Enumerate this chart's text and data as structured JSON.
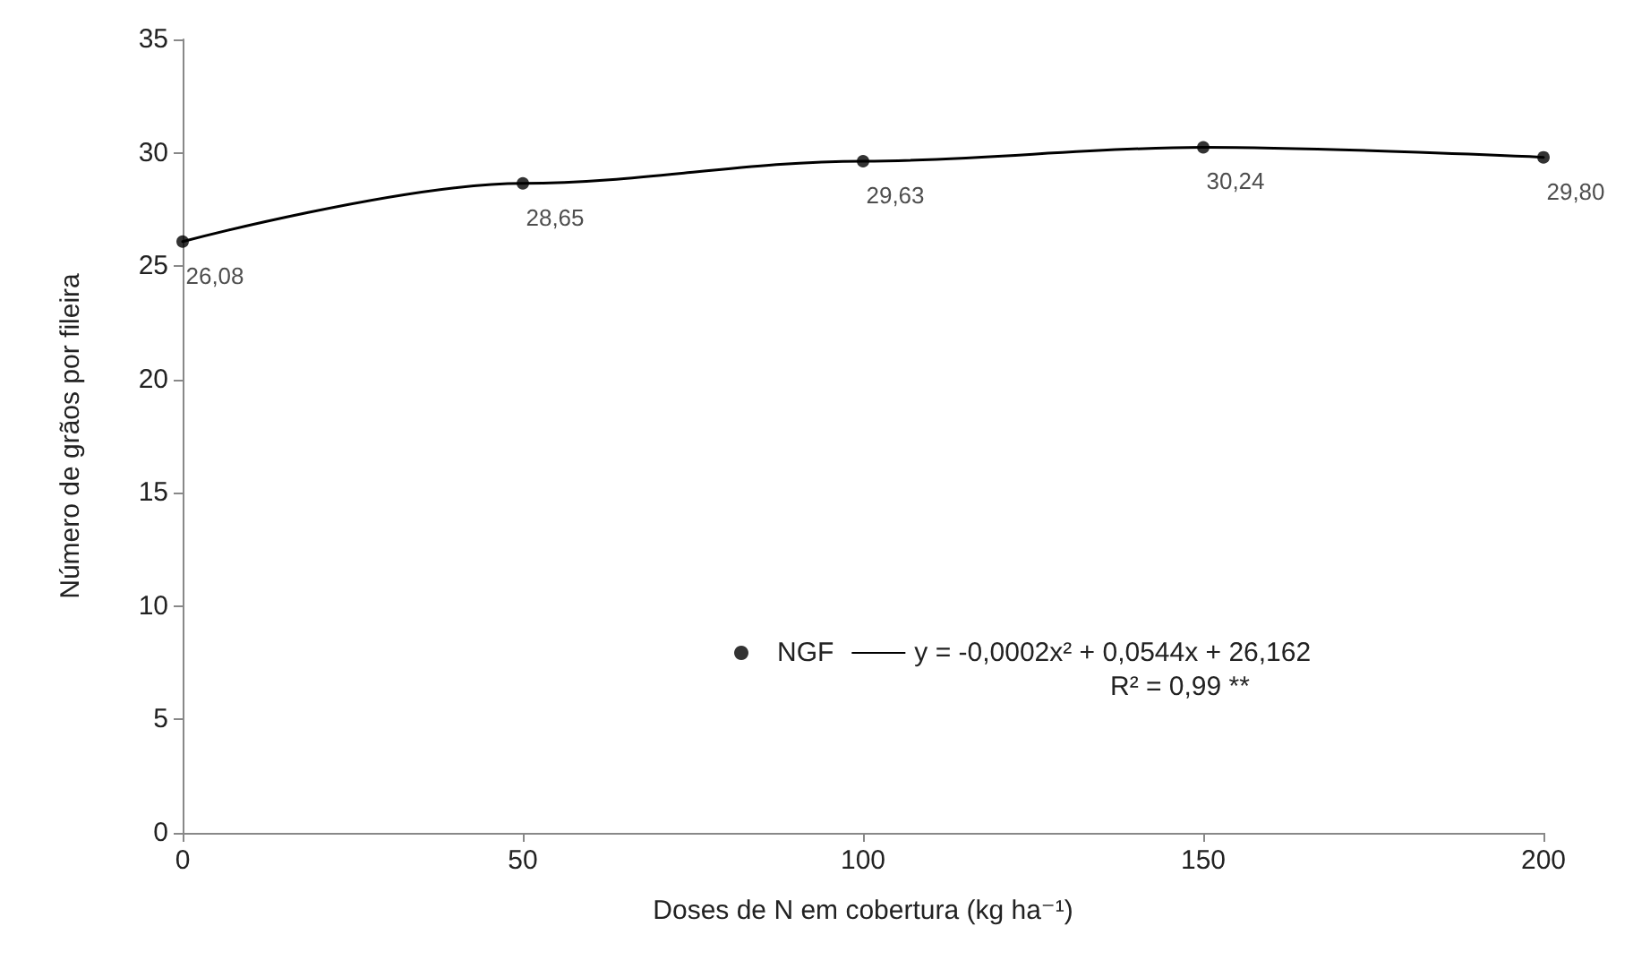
{
  "chart_data": {
    "type": "scatter",
    "xlabel": "Doses de N em cobertura (kg ha⁻¹)",
    "ylabel": "Número de grãos por fileira",
    "x": [
      0,
      50,
      100,
      150,
      200
    ],
    "series": [
      {
        "name": "NGF",
        "color": "#000000",
        "marker": "circle",
        "values": [
          26.08,
          28.65,
          29.63,
          30.24,
          29.8
        ],
        "value_labels": [
          "26,08",
          "28,65",
          "29,63",
          "30,24",
          "29,80"
        ]
      },
      {
        "name": "y = -0,0002x² + 0,0544x + 26,162",
        "type": "line",
        "color": "#000000",
        "marker": "none",
        "line_style": "solid",
        "values": [
          26.08,
          28.65,
          29.63,
          30.24,
          29.8
        ]
      }
    ],
    "annotations": [
      "R² = 0,99 **"
    ],
    "xlim": [
      0,
      200
    ],
    "xticks": [
      0,
      50,
      100,
      150,
      200
    ],
    "ylim": [
      0,
      35
    ],
    "yticks": [
      0,
      5,
      10,
      15,
      20,
      25,
      30,
      35
    ],
    "grid": false,
    "legend": "bottom right"
  }
}
